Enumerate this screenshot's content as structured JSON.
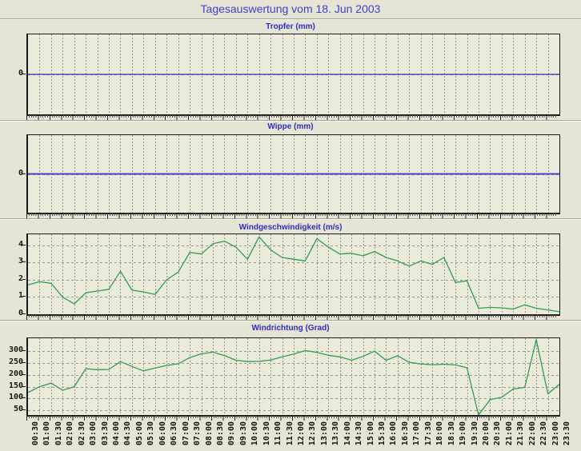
{
  "page_title": "Tagesauswertung vom 18. Jun 2003",
  "colors": {
    "background": "#e6e4d4",
    "plot_background": "#ebebdc",
    "title_text": "#4040c8",
    "chart_title_text": "#2e2ec0",
    "axis": "#1a1a1a",
    "grid": "#98988c",
    "blue_line": "#2c2cc4",
    "green_line": "#2f9e4e"
  },
  "chart_data": [
    {
      "type": "line",
      "title": "Tropfer (mm)",
      "line_color": "#2c2cc4",
      "ylim": [
        -1,
        1
      ],
      "yticks": [
        0
      ],
      "y_tick_labels": [
        "0"
      ],
      "grid": true,
      "categories": [
        "00:30",
        "01:00",
        "01:30",
        "02:00",
        "02:30",
        "03:00",
        "03:30",
        "04:00",
        "04:30",
        "05:00",
        "05:30",
        "06:00",
        "06:30",
        "07:00",
        "07:30",
        "08:00",
        "08:30",
        "09:00",
        "09:30",
        "10:00",
        "10:30",
        "11:00",
        "11:30",
        "12:00",
        "12:30",
        "13:00",
        "13:30",
        "14:00",
        "14:30",
        "15:00",
        "15:30",
        "16:00",
        "16:30",
        "17:00",
        "17:30",
        "18:00",
        "18:30",
        "19:00",
        "19:30",
        "20:00",
        "20:30",
        "21:00",
        "21:30",
        "22:00",
        "22:30",
        "23:00",
        "23:30"
      ],
      "values": [
        0,
        0,
        0,
        0,
        0,
        0,
        0,
        0,
        0,
        0,
        0,
        0,
        0,
        0,
        0,
        0,
        0,
        0,
        0,
        0,
        0,
        0,
        0,
        0,
        0,
        0,
        0,
        0,
        0,
        0,
        0,
        0,
        0,
        0,
        0,
        0,
        0,
        0,
        0,
        0,
        0,
        0,
        0,
        0,
        0,
        0,
        0
      ]
    },
    {
      "type": "line",
      "title": "Wippe (mm)",
      "line_color": "#4444d0",
      "ylim": [
        -1,
        1
      ],
      "yticks": [
        0
      ],
      "y_tick_labels": [
        "0"
      ],
      "grid": true,
      "categories": [
        "00:30",
        "01:00",
        "01:30",
        "02:00",
        "02:30",
        "03:00",
        "03:30",
        "04:00",
        "04:30",
        "05:00",
        "05:30",
        "06:00",
        "06:30",
        "07:00",
        "07:30",
        "08:00",
        "08:30",
        "09:00",
        "09:30",
        "10:00",
        "10:30",
        "11:00",
        "11:30",
        "12:00",
        "12:30",
        "13:00",
        "13:30",
        "14:00",
        "14:30",
        "15:00",
        "15:30",
        "16:00",
        "16:30",
        "17:00",
        "17:30",
        "18:00",
        "18:30",
        "19:00",
        "19:30",
        "20:00",
        "20:30",
        "21:00",
        "21:30",
        "22:00",
        "22:30",
        "23:00",
        "23:30"
      ],
      "values": [
        0,
        0,
        0,
        0,
        0,
        0,
        0,
        0,
        0,
        0,
        0,
        0,
        0,
        0,
        0,
        0,
        0,
        0,
        0,
        0,
        0,
        0,
        0,
        0,
        0,
        0,
        0,
        0,
        0,
        0,
        0,
        0,
        0,
        0,
        0,
        0,
        0,
        0,
        0,
        0,
        0,
        0,
        0,
        0,
        0,
        0,
        0
      ]
    },
    {
      "type": "line",
      "title": "Windgeschwindigkeit (m/s)",
      "line_color": "#2f9e4e",
      "ylim": [
        0,
        4.65
      ],
      "yticks": [
        0,
        1,
        2,
        3,
        4
      ],
      "y_tick_labels": [
        "0",
        "1",
        "2",
        "3",
        "4"
      ],
      "grid": true,
      "categories": [
        "00:30",
        "01:00",
        "01:30",
        "02:00",
        "02:30",
        "03:00",
        "03:30",
        "04:00",
        "04:30",
        "05:00",
        "05:30",
        "06:00",
        "06:30",
        "07:00",
        "07:30",
        "08:00",
        "08:30",
        "09:00",
        "09:30",
        "10:00",
        "10:30",
        "11:00",
        "11:30",
        "12:00",
        "12:30",
        "13:00",
        "13:30",
        "14:00",
        "14:30",
        "15:00",
        "15:30",
        "16:00",
        "16:30",
        "17:00",
        "17:30",
        "18:00",
        "18:30",
        "19:00",
        "19:30",
        "20:00",
        "20:30",
        "21:00",
        "21:30",
        "22:00",
        "22:30",
        "23:00",
        "23:30"
      ],
      "values": [
        1.7,
        1.9,
        1.8,
        1.0,
        0.6,
        1.25,
        1.35,
        1.45,
        2.5,
        1.4,
        1.3,
        1.15,
        2.0,
        2.45,
        3.6,
        3.5,
        4.1,
        4.25,
        3.9,
        3.2,
        4.5,
        3.75,
        3.3,
        3.2,
        3.1,
        4.4,
        3.9,
        3.5,
        3.55,
        3.4,
        3.65,
        3.3,
        3.1,
        2.8,
        3.1,
        2.9,
        3.3,
        1.85,
        1.95,
        0.35,
        0.4,
        0.37,
        0.3,
        0.55,
        0.35,
        0.25,
        0.15
      ]
    },
    {
      "type": "line",
      "title": "Windrichtung (Grad)",
      "line_color": "#2f9e4e",
      "ylim": [
        30,
        355
      ],
      "yticks": [
        50,
        100,
        150,
        200,
        250,
        300
      ],
      "y_tick_labels": [
        "50",
        "100",
        "150",
        "200",
        "250",
        "300"
      ],
      "grid": true,
      "categories": [
        "00:30",
        "01:00",
        "01:30",
        "02:00",
        "02:30",
        "03:00",
        "03:30",
        "04:00",
        "04:30",
        "05:00",
        "05:30",
        "06:00",
        "06:30",
        "07:00",
        "07:30",
        "08:00",
        "08:30",
        "09:00",
        "09:30",
        "10:00",
        "10:30",
        "11:00",
        "11:30",
        "12:00",
        "12:30",
        "13:00",
        "13:30",
        "14:00",
        "14:30",
        "15:00",
        "15:30",
        "16:00",
        "16:30",
        "17:00",
        "17:30",
        "18:00",
        "18:30",
        "19:00",
        "19:30",
        "20:00",
        "20:30",
        "21:00",
        "21:30",
        "22:00",
        "22:30",
        "23:00",
        "23:30"
      ],
      "values": [
        125,
        150,
        165,
        135,
        150,
        226,
        222,
        223,
        256,
        236,
        217,
        229,
        240,
        247,
        273,
        289,
        296,
        282,
        262,
        256,
        257,
        263,
        276,
        288,
        303,
        295,
        283,
        276,
        262,
        278,
        300,
        262,
        281,
        253,
        246,
        243,
        245,
        242,
        230,
        30,
        95,
        105,
        140,
        147,
        349,
        120,
        160
      ]
    }
  ]
}
